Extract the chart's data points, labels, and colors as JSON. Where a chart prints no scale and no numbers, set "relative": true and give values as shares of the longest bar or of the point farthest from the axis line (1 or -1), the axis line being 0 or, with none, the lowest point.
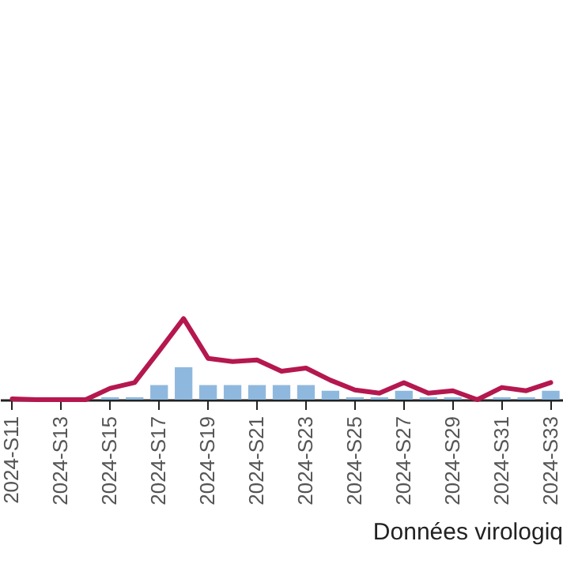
{
  "chart_data": {
    "type": "bar",
    "relative": true,
    "categories": [
      "2024-S11",
      null,
      "2024-S13",
      null,
      "2024-S15",
      null,
      "2024-S17",
      null,
      "2024-S19",
      null,
      "2024-S21",
      null,
      "2024-S23",
      null,
      "2024-S25",
      null,
      "2024-S27",
      null,
      "2024-S29",
      null,
      "2024-S31",
      null,
      "2024-S33"
    ],
    "series": [
      {
        "color": "#8fb8de",
        "values": [
          0,
          0,
          0,
          0,
          0.03,
          0.03,
          0.18,
          0.4,
          0.18,
          0.18,
          0.18,
          0.18,
          0.18,
          0.11,
          0.03,
          0.03,
          0.11,
          0.03,
          0.03,
          0,
          0.03,
          0.03,
          0.11
        ]
      },
      {
        "type": "line",
        "color": "#b5174f",
        "values": [
          0.01,
          0,
          0,
          0,
          0.14,
          0.21,
          0.6,
          1,
          0.51,
          0.47,
          0.49,
          0.35,
          0.39,
          0.24,
          0.12,
          0.08,
          0.21,
          0.08,
          0.11,
          0,
          0.15,
          0.11,
          0.21
        ]
      }
    ],
    "annotations": [
      "Données virologiq"
    ]
  }
}
